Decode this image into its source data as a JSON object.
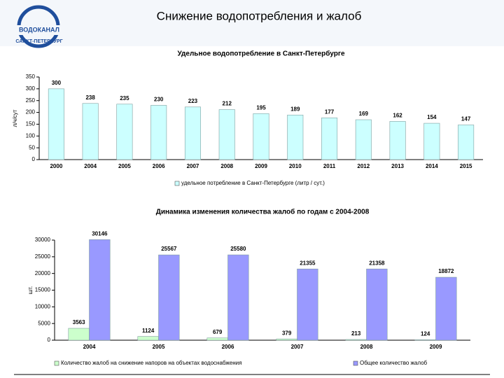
{
  "header": {
    "title": "Снижение водопотребления и жалоб",
    "logo": [
      "ВОДОКАНАЛ",
      "САНКТ-ПЕТЕРБУРГ"
    ]
  },
  "chart_data": [
    {
      "type": "bar",
      "title": "Удельное водопотребление в Санкт-Петербурге",
      "y_label": "л/ч/сут",
      "categories": [
        "2000",
        "2004",
        "2005",
        "2006",
        "2007",
        "2008",
        "2009",
        "2010",
        "2011",
        "2012",
        "2013",
        "2014",
        "2015"
      ],
      "series": [
        {
          "name": "удельное потребление в Санкт-Петербурге (литр / сут.)",
          "color": "#ccffff",
          "values": [
            300,
            238,
            235,
            230,
            223,
            212,
            195,
            189,
            177,
            169,
            162,
            154,
            147
          ]
        }
      ],
      "ylim": [
        0,
        350
      ],
      "yticks": [
        0,
        50,
        100,
        150,
        200,
        250,
        300,
        350
      ]
    },
    {
      "type": "bar",
      "title": "Динамика изменения количества жалоб по годам с 2004-2008",
      "y_label": "шт.",
      "categories": [
        "2004",
        "2005",
        "2006",
        "2007",
        "2008",
        "2009"
      ],
      "series": [
        {
          "name": "Количество жалоб на снижение напоров на объектах водоснабжения",
          "color": "#ccffcc",
          "values": [
            3563,
            1124,
            679,
            379,
            213,
            124
          ]
        },
        {
          "name": "Общее количество жалоб",
          "color": "#9999ff",
          "values": [
            30146,
            25567,
            25580,
            21355,
            21358,
            18872
          ]
        }
      ],
      "ylim": [
        0,
        30000
      ],
      "yticks": [
        0,
        5000,
        10000,
        15000,
        20000,
        25000,
        30000
      ]
    }
  ]
}
